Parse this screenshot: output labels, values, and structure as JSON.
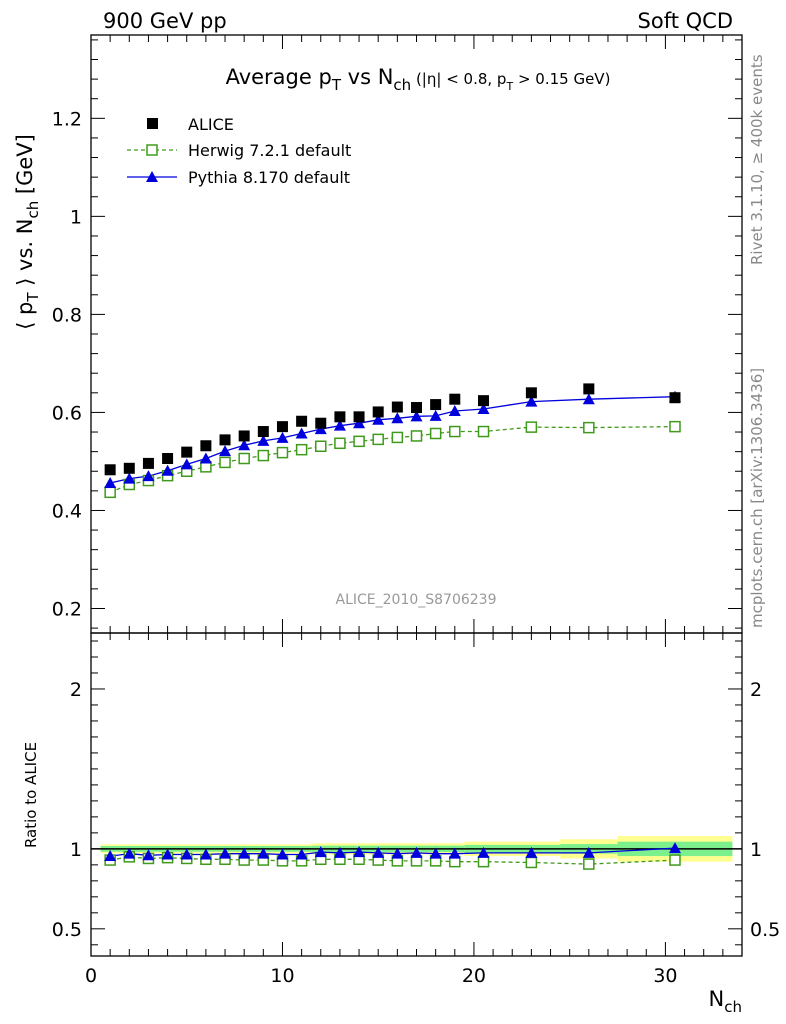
{
  "header": {
    "left": "900 GeV pp",
    "right": "Soft QCD"
  },
  "side_labels": {
    "rivet": "Rivet 3.1.10, ≥ 400k events",
    "mcplots": "mcplots.cern.ch [arXiv:1306.3436]"
  },
  "watermark": "ALICE_2010_S8706239",
  "chart_data": {
    "type": "scatter",
    "title": {
      "main": "Average p",
      "sub_T": "T",
      "mid": " vs N",
      "sub_ch": "ch",
      "cuts_a": " (|η| < 0.8, p",
      "cuts_sub": "T",
      "cuts_b": " > 0.15 GeV)"
    },
    "ylabel": {
      "a": "⟨ p",
      "sub_T": "T",
      "b": " ⟩ vs. N",
      "sub_ch": "ch",
      "c": " [GeV]"
    },
    "xlabel": {
      "a": "N",
      "sub": "ch"
    },
    "ratio_ylabel": "Ratio to ALICE",
    "xlim": [
      0,
      34
    ],
    "ylim": [
      0.15,
      1.37
    ],
    "ratio_ylim": [
      0.33,
      2.35
    ],
    "x_ticks": [
      0,
      10,
      20,
      30
    ],
    "y_ticks": [
      0.2,
      0.4,
      0.6,
      0.8,
      1,
      1.2
    ],
    "y_tick_labels": [
      "0.2",
      "0.4",
      "0.6",
      "0.8",
      "1",
      "1.2"
    ],
    "ratio_ticks": [
      0.5,
      1,
      2
    ],
    "ratio_tick_labels": [
      "0.5",
      "1",
      "2"
    ],
    "legend_position": "top-left",
    "series": [
      {
        "name": "ALICE",
        "style": "black-filled-square",
        "color": "#000000",
        "x": [
          1,
          2,
          3,
          4,
          5,
          6,
          7,
          8,
          9,
          10,
          11,
          12,
          13,
          14,
          15,
          16,
          17,
          18,
          19,
          20.5,
          23,
          26,
          30.5
        ],
        "y": [
          0.483,
          0.486,
          0.496,
          0.506,
          0.519,
          0.532,
          0.544,
          0.552,
          0.561,
          0.571,
          0.582,
          0.578,
          0.591,
          0.591,
          0.601,
          0.611,
          0.61,
          0.616,
          0.627,
          0.624,
          0.64,
          0.648,
          0.63
        ]
      },
      {
        "name": "Herwig 7.2.1 default",
        "style": "green-open-square-dashed",
        "color": "#3f9a1b",
        "x": [
          1,
          2,
          3,
          4,
          5,
          6,
          7,
          8,
          9,
          10,
          11,
          12,
          13,
          14,
          15,
          16,
          17,
          18,
          19,
          20.5,
          23,
          26,
          30.5
        ],
        "y": [
          0.437,
          0.453,
          0.461,
          0.471,
          0.48,
          0.489,
          0.498,
          0.506,
          0.512,
          0.518,
          0.524,
          0.531,
          0.537,
          0.541,
          0.545,
          0.549,
          0.552,
          0.557,
          0.561,
          0.561,
          0.57,
          0.569,
          0.571
        ],
        "ratio": [
          0.93,
          0.95,
          0.94,
          0.945,
          0.94,
          0.935,
          0.935,
          0.93,
          0.93,
          0.925,
          0.925,
          0.935,
          0.935,
          0.935,
          0.93,
          0.925,
          0.925,
          0.925,
          0.92,
          0.92,
          0.915,
          0.905,
          0.93
        ]
      },
      {
        "name": "Pythia 8.170 default",
        "style": "blue-filled-triangle-solid",
        "color": "#0000dd",
        "x": [
          1,
          2,
          3,
          4,
          5,
          6,
          7,
          8,
          9,
          10,
          11,
          12,
          13,
          14,
          15,
          16,
          17,
          18,
          19,
          20.5,
          23,
          26,
          30.5
        ],
        "y": [
          0.456,
          0.465,
          0.47,
          0.481,
          0.494,
          0.506,
          0.521,
          0.533,
          0.542,
          0.548,
          0.557,
          0.566,
          0.573,
          0.578,
          0.585,
          0.588,
          0.592,
          0.593,
          0.603,
          0.607,
          0.622,
          0.627,
          0.632
        ],
        "ratio": [
          0.955,
          0.97,
          0.96,
          0.965,
          0.965,
          0.965,
          0.97,
          0.97,
          0.97,
          0.965,
          0.965,
          0.98,
          0.975,
          0.98,
          0.975,
          0.97,
          0.975,
          0.97,
          0.97,
          0.975,
          0.975,
          0.975,
          1.005
        ]
      }
    ],
    "ratio_bands": {
      "inner_color": "#7cf08c",
      "outer_color": "#ffff90",
      "segments": [
        {
          "x0": 0.5,
          "x1": 11.5,
          "inner": 0.018,
          "outer": 0.028
        },
        {
          "x0": 11.5,
          "x1": 19.5,
          "inner": 0.02,
          "outer": 0.035
        },
        {
          "x0": 19.5,
          "x1": 24.5,
          "inner": 0.025,
          "outer": 0.045
        },
        {
          "x0": 24.5,
          "x1": 27.5,
          "inner": 0.03,
          "outer": 0.06
        },
        {
          "x0": 27.5,
          "x1": 33.5,
          "inner": 0.045,
          "outer": 0.08
        }
      ]
    }
  }
}
